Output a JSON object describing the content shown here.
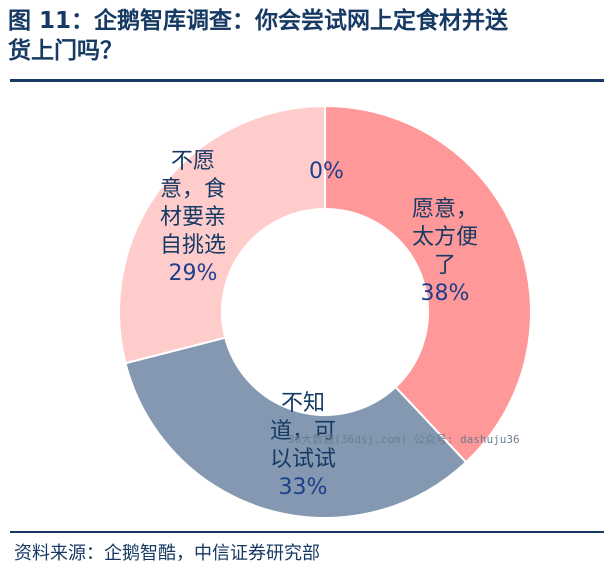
{
  "header": {
    "title_line1": "图 11：企鹅智库调查：你会尝试网上定食材并送",
    "title_line2": "货上门吗？"
  },
  "chart_data": {
    "type": "pie",
    "donut": true,
    "categories": [
      "愿意，太方便了",
      "不知道，可以试试",
      "不愿意，食材要亲自挑选",
      ""
    ],
    "values": [
      38,
      33,
      29,
      0
    ],
    "label_lines": [
      [
        "愿意，",
        "太方便",
        "了"
      ],
      [
        "不知",
        "道，可",
        "以试试"
      ],
      [
        "不愿",
        "意，食",
        "材要亲",
        "自挑选"
      ],
      []
    ],
    "value_labels": [
      "38%",
      "33%",
      "29%",
      "0%"
    ],
    "colors": [
      "#ff9999",
      "#8499b1",
      "#ffcccc",
      "#ffffff"
    ]
  },
  "footer": {
    "source": "资料来源：企鹅智酷，中信证券研究部"
  },
  "watermark": {
    "text": "36大数据(36dsj.com) 公众号: dashuju36"
  }
}
